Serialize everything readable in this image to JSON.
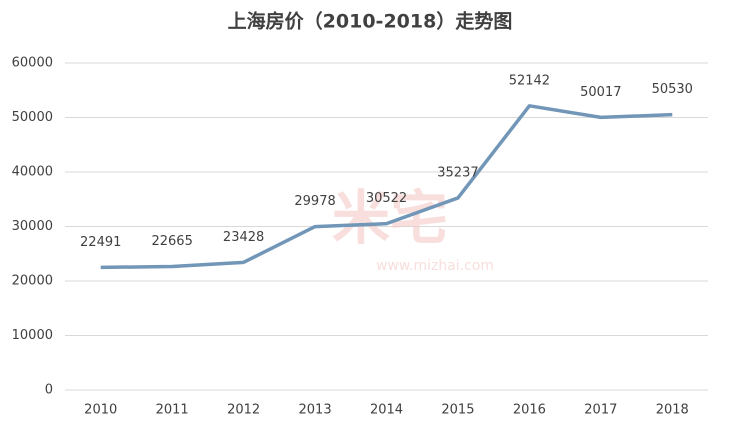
{
  "chart_data": {
    "type": "line",
    "title": "上海房价（2010-2018）走势图",
    "categories": [
      "2010",
      "2011",
      "2012",
      "2013",
      "2014",
      "2015",
      "2016",
      "2017",
      "2018"
    ],
    "series": [
      {
        "name": "上海房价",
        "color": "#7196b8",
        "values": [
          22491,
          22665,
          23428,
          29978,
          30522,
          35237,
          52142,
          50017,
          50530
        ]
      }
    ],
    "ylim": [
      0,
      60000
    ],
    "yticks": [
      0,
      10000,
      20000,
      30000,
      40000,
      50000,
      60000
    ],
    "grid": true,
    "watermark": [
      "米宅",
      "www.mizhai.com"
    ]
  }
}
